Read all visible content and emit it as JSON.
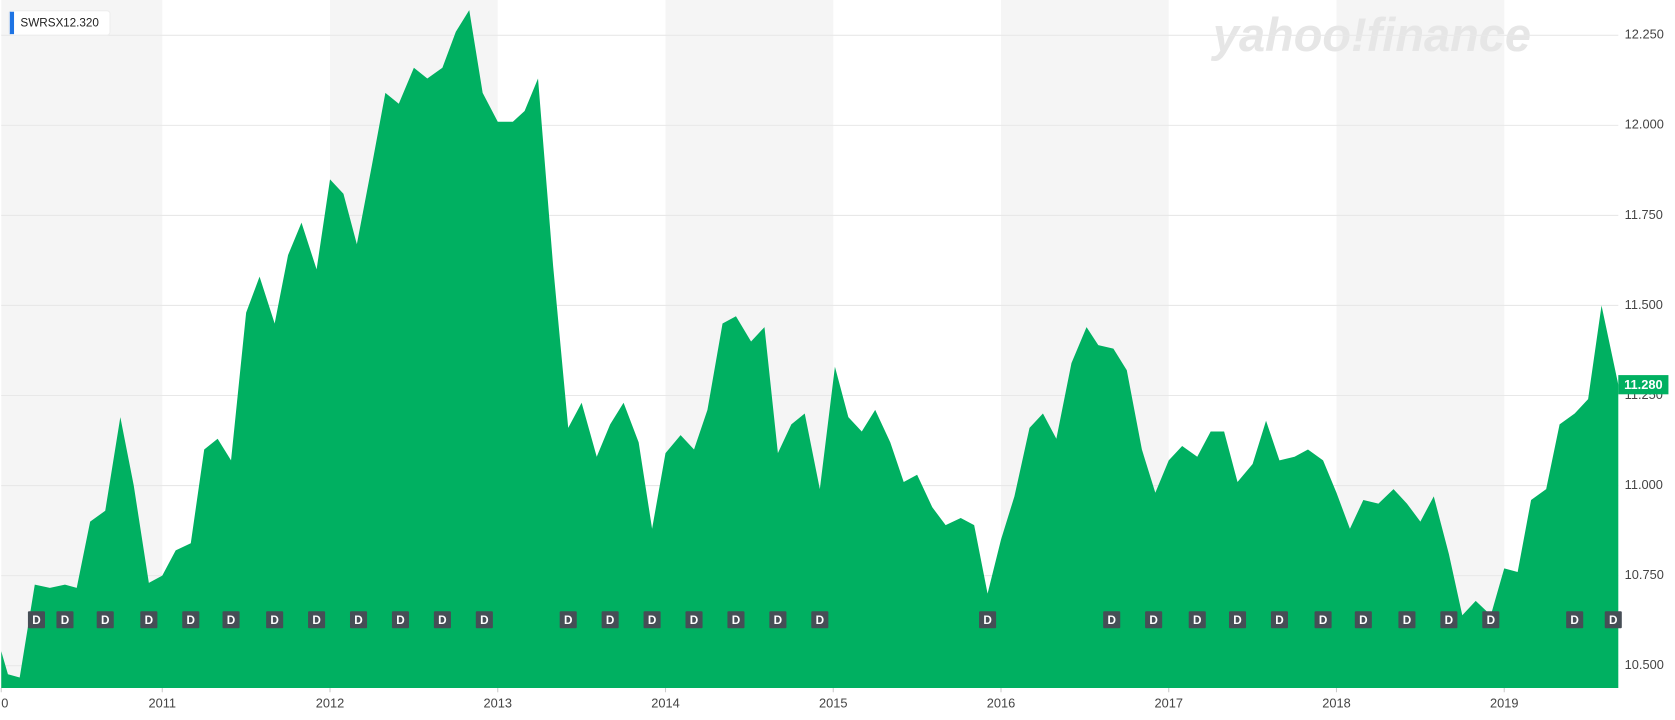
{
  "chart_data": {
    "type": "area",
    "watermark": "yahoo!finance",
    "legend": {
      "name": "SWRSX",
      "value": {
        "value": 12.32,
        "label": "12.320"
      }
    },
    "last_value": {
      "value": 11.28,
      "label": "11.280"
    },
    "x": [
      2010.04,
      2010.08,
      2010.15,
      2010.24,
      2010.33,
      2010.42,
      2010.49,
      2010.57,
      2010.66,
      2010.75,
      2010.83,
      2010.92,
      2011.0,
      2011.08,
      2011.17,
      2011.25,
      2011.33,
      2011.41,
      2011.5,
      2011.58,
      2011.67,
      2011.75,
      2011.83,
      2011.92,
      2012.0,
      2012.08,
      2012.16,
      2012.25,
      2012.33,
      2012.41,
      2012.5,
      2012.58,
      2012.67,
      2012.75,
      2012.83,
      2012.91,
      2013.0,
      2013.09,
      2013.16,
      2013.24,
      2013.33,
      2013.42,
      2013.5,
      2013.59,
      2013.67,
      2013.75,
      2013.84,
      2013.92,
      2014.0,
      2014.09,
      2014.17,
      2014.25,
      2014.34,
      2014.42,
      2014.51,
      2014.59,
      2014.67,
      2014.75,
      2014.83,
      2014.92,
      2015.01,
      2015.09,
      2015.17,
      2015.25,
      2015.34,
      2015.42,
      2015.5,
      2015.59,
      2015.67,
      2015.76,
      2015.84,
      2015.92,
      2016.0,
      2016.08,
      2016.17,
      2016.25,
      2016.33,
      2016.42,
      2016.51,
      2016.58,
      2016.67,
      2016.75,
      2016.84,
      2016.92,
      2017.0,
      2017.08,
      2017.17,
      2017.25,
      2017.33,
      2017.41,
      2017.5,
      2017.58,
      2017.66,
      2017.75,
      2017.83,
      2017.92,
      2018.0,
      2018.08,
      2018.16,
      2018.25,
      2018.34,
      2018.42,
      2018.5,
      2018.58,
      2018.67,
      2018.75,
      2018.83,
      2018.92,
      2019.0,
      2019.08,
      2019.16,
      2019.25,
      2019.33,
      2019.42,
      2019.5,
      2019.58,
      2019.68
    ],
    "series": [
      {
        "name": "SWRSX",
        "color": "#00b061",
        "values": [
          10.54,
          10.476,
          10.467,
          10.725,
          10.716,
          10.725,
          10.716,
          10.9,
          10.93,
          11.19,
          11.0,
          10.73,
          10.75,
          10.82,
          10.84,
          11.1,
          11.13,
          11.07,
          11.48,
          11.58,
          11.45,
          11.64,
          11.73,
          11.6,
          11.85,
          11.81,
          11.67,
          11.89,
          12.09,
          12.06,
          12.16,
          12.13,
          12.16,
          12.26,
          12.32,
          12.09,
          12.01,
          12.01,
          12.04,
          12.13,
          11.61,
          11.16,
          11.23,
          11.08,
          11.17,
          11.23,
          11.12,
          10.88,
          11.09,
          11.14,
          11.1,
          11.21,
          11.45,
          11.47,
          11.4,
          11.44,
          11.09,
          11.17,
          11.2,
          10.99,
          11.33,
          11.19,
          11.15,
          11.21,
          11.12,
          11.01,
          11.03,
          10.94,
          10.89,
          10.91,
          10.89,
          10.7,
          10.85,
          10.97,
          11.16,
          11.2,
          11.13,
          11.34,
          11.44,
          11.39,
          11.38,
          11.32,
          11.1,
          10.98,
          11.07,
          11.11,
          11.08,
          11.15,
          11.15,
          11.01,
          11.06,
          11.18,
          11.07,
          11.08,
          11.1,
          11.07,
          10.98,
          10.88,
          10.96,
          10.95,
          10.99,
          10.95,
          10.9,
          10.97,
          10.81,
          10.64,
          10.68,
          10.64,
          10.77,
          10.76,
          10.96,
          10.99,
          11.17,
          11.2,
          11.24,
          11.5,
          11.28
        ]
      }
    ],
    "dividend_markers": {
      "label": "D",
      "x": [
        2010.25,
        2010.42,
        2010.66,
        2010.92,
        2011.17,
        2011.41,
        2011.67,
        2011.92,
        2012.17,
        2012.42,
        2012.67,
        2012.92,
        2013.42,
        2013.67,
        2013.92,
        2014.17,
        2014.42,
        2014.67,
        2014.92,
        2015.92,
        2016.66,
        2016.91,
        2017.17,
        2017.41,
        2017.66,
        2017.92,
        2018.16,
        2018.42,
        2018.67,
        2018.92,
        2019.42,
        2019.65
      ]
    },
    "xlim": [
      2010.04,
      2019.68
    ],
    "ylim": [
      10.438,
      12.348
    ],
    "xticks": [
      {
        "value": 2010,
        "label": "0"
      },
      2011,
      2012,
      2013,
      2014,
      2015,
      2016,
      2017,
      2018,
      2019
    ],
    "yticks": [
      {
        "value": 10.5,
        "label": "10.500"
      },
      {
        "value": 10.75,
        "label": "10.750"
      },
      {
        "value": 11,
        "label": "11.000"
      },
      {
        "value": 11.25,
        "label": "11.250"
      },
      {
        "value": 11.5,
        "label": "11.500"
      },
      {
        "value": 11.75,
        "label": "11.750"
      },
      {
        "value": 12,
        "label": "12.000"
      },
      {
        "value": 12.25,
        "label": "12.250"
      }
    ],
    "grid": true
  }
}
